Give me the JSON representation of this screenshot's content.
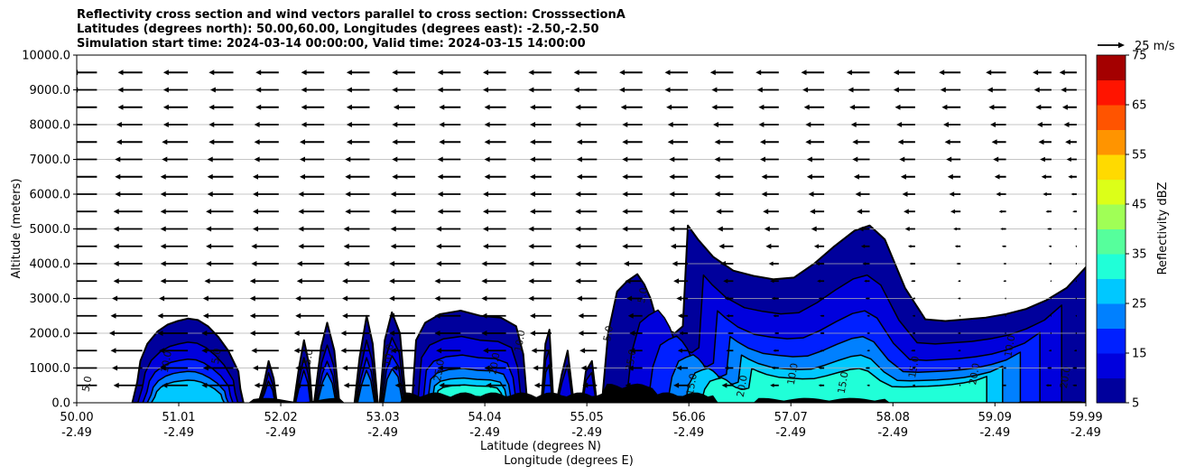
{
  "chart_data": {
    "type": "contourf",
    "title_lines": [
      "Reflectivity cross section and wind vectors parallel to cross section: CrosssectionA",
      "Latitudes (degrees north): 50.00,60.00, Longitudes (degrees east): -2.50,-2.50",
      "Simulation start time: 2024-03-14 00:00:00, Valid time: 2024-03-15 14:00:00"
    ],
    "xlabel_lines": [
      "Latitude (degrees N)",
      "Longitude (degrees E)"
    ],
    "ylabel": "Altitude (meters)",
    "xlim": [
      50.0,
      59.99
    ],
    "ylim": [
      0,
      10000
    ],
    "x_ticks": [
      {
        "value": 50.0,
        "lat": "50.00",
        "lon": "-2.49"
      },
      {
        "value": 51.01,
        "lat": "51.01",
        "lon": "-2.49"
      },
      {
        "value": 52.02,
        "lat": "52.02",
        "lon": "-2.49"
      },
      {
        "value": 53.03,
        "lat": "53.03",
        "lon": "-2.49"
      },
      {
        "value": 54.04,
        "lat": "54.04",
        "lon": "-2.49"
      },
      {
        "value": 55.05,
        "lat": "55.05",
        "lon": "-2.49"
      },
      {
        "value": 56.06,
        "lat": "56.06",
        "lon": "-2.49"
      },
      {
        "value": 57.07,
        "lat": "57.07",
        "lon": "-2.49"
      },
      {
        "value": 58.08,
        "lat": "58.08",
        "lon": "-2.49"
      },
      {
        "value": 59.09,
        "lat": "59.09",
        "lon": "-2.49"
      },
      {
        "value": 59.99,
        "lat": "59.99",
        "lon": "-2.49"
      }
    ],
    "y_ticks": [
      0,
      1000,
      2000,
      3000,
      4000,
      5000,
      6000,
      7000,
      8000,
      9000,
      10000
    ],
    "y_tick_labels": [
      "0.0",
      "1000.0",
      "2000.0",
      "3000.0",
      "4000.0",
      "5000.0",
      "6000.0",
      "7000.0",
      "8000.0",
      "9000.0",
      "10000.0"
    ],
    "grid_y": true,
    "colorbar": {
      "label": "Reflectivity dBZ",
      "levels": [
        5,
        10,
        15,
        20,
        25,
        30,
        35,
        40,
        45,
        50,
        55,
        60,
        65,
        70,
        75
      ],
      "tick_values": [
        5,
        15,
        25,
        35,
        45,
        55,
        65,
        75
      ],
      "tick_labels": [
        "5",
        "15",
        "25",
        "35",
        "45",
        "55",
        "65",
        "75"
      ],
      "colors": [
        "#00009c",
        "#0000dd",
        "#0020ff",
        "#0080ff",
        "#00c8ff",
        "#20ffd8",
        "#56ff9c",
        "#a0ff56",
        "#dcff18",
        "#ffda00",
        "#ff9400",
        "#ff5400",
        "#ff1400",
        "#a40000"
      ]
    },
    "quiver_key": {
      "label": "25 m/s",
      "speed": 25
    },
    "wind": {
      "x_positions": [
        50.2,
        50.65,
        51.1,
        51.55,
        52.0,
        52.45,
        52.9,
        53.35,
        53.8,
        54.25,
        54.7,
        55.15,
        55.6,
        56.05,
        56.5,
        56.95,
        57.4,
        57.85,
        58.3,
        58.75,
        59.2,
        59.65,
        59.9
      ],
      "levels": [
        500,
        1000,
        1500,
        2000,
        2500,
        3000,
        3500,
        4000,
        4500,
        5000,
        5500,
        6000,
        6500,
        7000,
        7500,
        8000,
        8500,
        9000,
        9500
      ],
      "u_ms": [
        [
          -22,
          -20,
          -18,
          -22,
          -17,
          -20,
          -18,
          -14,
          -15,
          -14,
          -12,
          -10,
          -12,
          -10,
          -8,
          -6,
          -4,
          -2,
          -2,
          -1,
          -3,
          -4,
          -3
        ],
        [
          -23,
          -21,
          -19,
          -21,
          -18,
          -20,
          -19,
          -16,
          -16,
          -15,
          -13,
          -11,
          -10,
          -8,
          -6,
          -5,
          -4,
          -3,
          -2,
          -2,
          -2,
          -3,
          -3
        ],
        [
          -24,
          -22,
          -20,
          -22,
          -19,
          -21,
          -20,
          -17,
          -17,
          -16,
          -14,
          -12,
          -9,
          -7,
          -5,
          -4,
          -3,
          -2,
          -3,
          -2,
          -2,
          -2,
          -2
        ],
        [
          -24,
          -23,
          -21,
          -22,
          -20,
          -21,
          -20,
          -18,
          -18,
          -17,
          -15,
          -13,
          -9,
          -6,
          -4,
          -3,
          -3,
          -2,
          -2,
          -2,
          -1,
          -1,
          -1
        ],
        [
          -23,
          -22,
          -21,
          -21,
          -20,
          -20,
          -19,
          -18,
          -18,
          -17,
          -15,
          -13,
          -10,
          -7,
          -5,
          -4,
          -3,
          -2,
          -2,
          -1,
          -1,
          -1,
          -1
        ],
        [
          -22,
          -21,
          -20,
          -21,
          -20,
          -20,
          -19,
          -18,
          -18,
          -17,
          -16,
          -14,
          -11,
          -8,
          -6,
          -5,
          -4,
          -3,
          -2,
          -2,
          -1,
          -1,
          -1
        ],
        [
          -22,
          -20,
          -19,
          -20,
          -20,
          -19,
          -19,
          -18,
          -18,
          -17,
          -16,
          -15,
          -12,
          -10,
          -7,
          -6,
          -5,
          -4,
          -3,
          -2,
          -2,
          -1,
          -1
        ],
        [
          -21,
          -20,
          -19,
          -19,
          -19,
          -19,
          -18,
          -18,
          -17,
          -17,
          -16,
          -15,
          -13,
          -11,
          -9,
          -7,
          -6,
          -5,
          -4,
          -3,
          -2,
          -2,
          -1
        ],
        [
          -21,
          -20,
          -19,
          -19,
          -19,
          -18,
          -18,
          -17,
          -17,
          -16,
          -16,
          -15,
          -14,
          -12,
          -10,
          -9,
          -7,
          -6,
          -5,
          -4,
          -3,
          -2,
          -1
        ],
        [
          -21,
          -20,
          -19,
          -19,
          -18,
          -18,
          -18,
          -17,
          -17,
          -16,
          -16,
          -15,
          -14,
          -13,
          -11,
          -10,
          -9,
          -8,
          -7,
          -5,
          -4,
          -3,
          -2
        ],
        [
          -20,
          -20,
          -19,
          -19,
          -18,
          -18,
          -17,
          -17,
          -16,
          -16,
          -15,
          -15,
          -14,
          -13,
          -12,
          -11,
          -10,
          -9,
          -8,
          -7,
          -5,
          -4,
          -3
        ],
        [
          -20,
          -19,
          -19,
          -18,
          -18,
          -18,
          -17,
          -17,
          -16,
          -16,
          -15,
          -15,
          -14,
          -13,
          -13,
          -12,
          -11,
          -10,
          -9,
          -8,
          -7,
          -6,
          -4
        ],
        [
          -20,
          -19,
          -19,
          -18,
          -18,
          -17,
          -17,
          -16,
          -16,
          -15,
          -15,
          -14,
          -14,
          -13,
          -13,
          -12,
          -12,
          -11,
          -10,
          -9,
          -8,
          -7,
          -6
        ],
        [
          -19,
          -19,
          -18,
          -18,
          -17,
          -17,
          -17,
          -16,
          -16,
          -15,
          -15,
          -14,
          -14,
          -13,
          -13,
          -13,
          -12,
          -12,
          -11,
          -10,
          -9,
          -8,
          -7
        ],
        [
          -19,
          -18,
          -18,
          -17,
          -17,
          -17,
          -16,
          -16,
          -15,
          -15,
          -15,
          -14,
          -14,
          -14,
          -13,
          -13,
          -13,
          -12,
          -12,
          -11,
          -10,
          -9,
          -8
        ],
        [
          -18,
          -18,
          -17,
          -17,
          -17,
          -16,
          -16,
          -16,
          -15,
          -15,
          -15,
          -15,
          -14,
          -14,
          -14,
          -14,
          -13,
          -13,
          -13,
          -12,
          -11,
          -10,
          -9
        ],
        [
          -18,
          -17,
          -17,
          -17,
          -16,
          -16,
          -16,
          -15,
          -15,
          -15,
          -15,
          -15,
          -15,
          -15,
          -15,
          -14,
          -14,
          -14,
          -14,
          -13,
          -12,
          -11,
          -10
        ],
        [
          -17,
          -17,
          -17,
          -16,
          -16,
          -16,
          -16,
          -16,
          -16,
          -16,
          -16,
          -16,
          -16,
          -16,
          -15,
          -15,
          -15,
          -15,
          -15,
          -14,
          -13,
          -12,
          -11
        ],
        [
          -17,
          -17,
          -17,
          -17,
          -16,
          -16,
          -16,
          -16,
          -16,
          -16,
          -16,
          -16,
          -16,
          -16,
          -16,
          -16,
          -16,
          -16,
          -15,
          -15,
          -14,
          -13,
          -12
        ]
      ]
    },
    "cells": [
      {
        "x": [
          50.55,
          50.6,
          50.63,
          50.7,
          50.8,
          50.9,
          51.0,
          51.1,
          51.2,
          51.3,
          51.4,
          51.5,
          51.55,
          51.6,
          51.62,
          51.65
        ],
        "top": [
          0,
          600,
          1200,
          1700,
          2050,
          2250,
          2350,
          2420,
          2380,
          2200,
          1900,
          1500,
          1200,
          900,
          400,
          0
        ],
        "core": 25
      },
      {
        "x": [
          51.8,
          51.85,
          51.9,
          51.95,
          51.98
        ],
        "top": [
          0,
          500,
          1200,
          700,
          0
        ],
        "core": 15
      },
      {
        "x": [
          52.15,
          52.2,
          52.25,
          52.3,
          52.33
        ],
        "top": [
          0,
          1000,
          1800,
          1100,
          0
        ],
        "core": 15
      },
      {
        "x": [
          52.35,
          52.42,
          52.48,
          52.55,
          52.6
        ],
        "top": [
          0,
          1600,
          2300,
          1500,
          0
        ],
        "core": 20
      },
      {
        "x": [
          52.75,
          52.8,
          52.87,
          52.93,
          52.98
        ],
        "top": [
          0,
          1300,
          2500,
          1700,
          0
        ],
        "core": 20
      },
      {
        "x": [
          53.0,
          53.05,
          53.12,
          53.2,
          53.26
        ],
        "top": [
          0,
          1800,
          2600,
          2000,
          0
        ],
        "core": 20
      },
      {
        "x": [
          53.32,
          53.36,
          53.45,
          53.6,
          53.8,
          54.0,
          54.2,
          54.35,
          54.42,
          54.46
        ],
        "top": [
          0,
          1800,
          2300,
          2550,
          2650,
          2500,
          2450,
          2200,
          1400,
          0
        ],
        "core": 30
      },
      {
        "x": [
          54.6,
          54.64,
          54.68,
          54.72
        ],
        "top": [
          0,
          1700,
          2100,
          0
        ],
        "core": 15
      },
      {
        "x": [
          54.75,
          54.8,
          54.86,
          54.92
        ],
        "top": [
          0,
          800,
          1500,
          0
        ],
        "core": 10
      },
      {
        "x": [
          55.0,
          55.04,
          55.1,
          55.15
        ],
        "top": [
          0,
          900,
          1200,
          0
        ],
        "core": 10
      },
      {
        "x": [
          55.2,
          55.26,
          55.35,
          55.45,
          55.55,
          55.62,
          55.68,
          55.72,
          55.78,
          55.85,
          55.92,
          56.0,
          56.05,
          56.15,
          56.3,
          56.5,
          56.7,
          56.9,
          57.1,
          57.3,
          57.5,
          57.7,
          57.85,
          58.0,
          58.2,
          58.4,
          58.6,
          58.8,
          59.0,
          59.2,
          59.4,
          59.6,
          59.8,
          59.99,
          59.99
        ],
        "top": [
          0,
          2000,
          3200,
          3500,
          3700,
          3400,
          3000,
          2600,
          2300,
          2100,
          2000,
          2200,
          5100,
          4700,
          4200,
          3800,
          3650,
          3550,
          3600,
          4000,
          4500,
          4950,
          5100,
          4700,
          3300,
          2400,
          2350,
          2400,
          2450,
          2550,
          2700,
          2950,
          3300,
          3900,
          0
        ],
        "core": 30
      }
    ],
    "contour_labels": [
      "5.0",
      "10.0",
      "15.0",
      "20.0",
      "25.0",
      "30.0"
    ]
  }
}
